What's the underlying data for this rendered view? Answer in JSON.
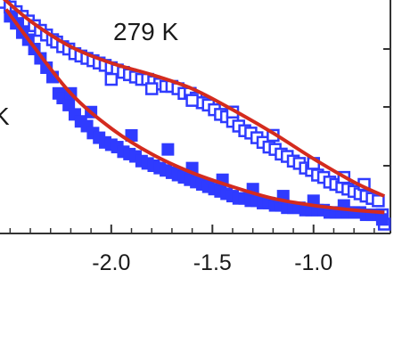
{
  "chart_data": {
    "type": "scatter",
    "title": "",
    "xlabel": "",
    "ylabel": "",
    "xlim": [
      -2.55,
      -0.62
    ],
    "ylim": [
      0.0,
      1.0
    ],
    "x_ticks": [
      -2.0,
      -1.5,
      -1.0
    ],
    "x_tick_labels": [
      "-2.0",
      "-1.5",
      "-1.0"
    ],
    "grid": false,
    "annotations": [
      "279 K",
      "K"
    ],
    "colors": {
      "points": "#2f3bff",
      "fit": "#d42b1e",
      "axis": "#333333"
    },
    "series": [
      {
        "marker": "open-square",
        "points": [
          [
            -2.53,
            0.99
          ],
          [
            -2.5,
            0.97
          ],
          [
            -2.47,
            0.95
          ],
          [
            -2.44,
            0.93
          ],
          [
            -2.41,
            0.91
          ],
          [
            -2.38,
            0.89
          ],
          [
            -2.35,
            0.87
          ],
          [
            -2.32,
            0.85
          ],
          [
            -2.29,
            0.83
          ],
          [
            -2.27,
            0.82
          ],
          [
            -2.24,
            0.8
          ],
          [
            -2.21,
            0.79
          ],
          [
            -2.18,
            0.77
          ],
          [
            -2.15,
            0.76
          ],
          [
            -2.12,
            0.75
          ],
          [
            -2.09,
            0.74
          ],
          [
            -2.06,
            0.73
          ],
          [
            -2.03,
            0.72
          ],
          [
            -2.0,
            0.71
          ],
          [
            -1.97,
            0.7
          ],
          [
            -1.94,
            0.69
          ],
          [
            -1.91,
            0.68
          ],
          [
            -1.88,
            0.67
          ],
          [
            -1.85,
            0.66
          ],
          [
            -1.82,
            0.66
          ],
          [
            -1.79,
            0.65
          ],
          [
            -1.76,
            0.64
          ],
          [
            -1.73,
            0.63
          ],
          [
            -1.7,
            0.63
          ],
          [
            -1.67,
            0.62
          ],
          [
            -1.64,
            0.6
          ],
          [
            -1.61,
            0.6
          ],
          [
            -1.58,
            0.58
          ],
          [
            -1.55,
            0.56
          ],
          [
            -1.52,
            0.55
          ],
          [
            -1.49,
            0.53
          ],
          [
            -1.46,
            0.51
          ],
          [
            -1.43,
            0.5
          ],
          [
            -1.4,
            0.48
          ],
          [
            -1.37,
            0.46
          ],
          [
            -1.34,
            0.44
          ],
          [
            -1.31,
            0.43
          ],
          [
            -1.28,
            0.41
          ],
          [
            -1.25,
            0.39
          ],
          [
            -1.22,
            0.37
          ],
          [
            -1.19,
            0.36
          ],
          [
            -1.16,
            0.34
          ],
          [
            -1.13,
            0.33
          ],
          [
            -1.1,
            0.31
          ],
          [
            -1.07,
            0.3
          ],
          [
            -1.04,
            0.28
          ],
          [
            -1.01,
            0.27
          ],
          [
            -0.98,
            0.25
          ],
          [
            -0.95,
            0.24
          ],
          [
            -0.92,
            0.22
          ],
          [
            -0.89,
            0.21
          ],
          [
            -0.86,
            0.2
          ],
          [
            -0.83,
            0.19
          ],
          [
            -0.8,
            0.18
          ],
          [
            -0.77,
            0.17
          ],
          [
            -0.74,
            0.16
          ],
          [
            -0.71,
            0.15
          ],
          [
            -0.68,
            0.14
          ],
          [
            -0.66,
            0.08
          ],
          [
            -0.65,
            0.04
          ],
          [
            -2.0,
            0.66
          ],
          [
            -1.8,
            0.62
          ],
          [
            -1.6,
            0.57
          ],
          [
            -1.4,
            0.52
          ],
          [
            -1.2,
            0.42
          ],
          [
            -1.0,
            0.3
          ],
          [
            -0.85,
            0.24
          ],
          [
            -0.75,
            0.21
          ]
        ]
      },
      {
        "marker": "filled-square",
        "points": [
          [
            -2.5,
            0.93
          ],
          [
            -2.47,
            0.9
          ],
          [
            -2.44,
            0.86
          ],
          [
            -2.41,
            0.83
          ],
          [
            -2.38,
            0.79
          ],
          [
            -2.35,
            0.75
          ],
          [
            -2.32,
            0.71
          ],
          [
            -2.29,
            0.67
          ],
          [
            -2.26,
            0.6
          ],
          [
            -2.24,
            0.58
          ],
          [
            -2.21,
            0.55
          ],
          [
            -2.18,
            0.51
          ],
          [
            -2.15,
            0.48
          ],
          [
            -2.12,
            0.46
          ],
          [
            -2.09,
            0.43
          ],
          [
            -2.06,
            0.41
          ],
          [
            -2.03,
            0.39
          ],
          [
            -2.0,
            0.38
          ],
          [
            -1.97,
            0.37
          ],
          [
            -1.94,
            0.35
          ],
          [
            -1.91,
            0.34
          ],
          [
            -1.88,
            0.33
          ],
          [
            -1.85,
            0.31
          ],
          [
            -1.82,
            0.3
          ],
          [
            -1.79,
            0.29
          ],
          [
            -1.76,
            0.28
          ],
          [
            -1.73,
            0.27
          ],
          [
            -1.7,
            0.26
          ],
          [
            -1.67,
            0.25
          ],
          [
            -1.64,
            0.24
          ],
          [
            -1.61,
            0.23
          ],
          [
            -1.58,
            0.22
          ],
          [
            -1.55,
            0.21
          ],
          [
            -1.52,
            0.2
          ],
          [
            -1.49,
            0.19
          ],
          [
            -1.46,
            0.18
          ],
          [
            -1.43,
            0.17
          ],
          [
            -1.4,
            0.16
          ],
          [
            -1.37,
            0.15
          ],
          [
            -1.34,
            0.15
          ],
          [
            -1.31,
            0.14
          ],
          [
            -1.28,
            0.14
          ],
          [
            -1.25,
            0.13
          ],
          [
            -1.22,
            0.13
          ],
          [
            -1.19,
            0.12
          ],
          [
            -1.16,
            0.12
          ],
          [
            -1.13,
            0.11
          ],
          [
            -1.1,
            0.11
          ],
          [
            -1.07,
            0.11
          ],
          [
            -1.04,
            0.1
          ],
          [
            -1.01,
            0.1
          ],
          [
            -0.98,
            0.1
          ],
          [
            -0.95,
            0.1
          ],
          [
            -0.92,
            0.09
          ],
          [
            -0.89,
            0.09
          ],
          [
            -0.86,
            0.09
          ],
          [
            -0.83,
            0.09
          ],
          [
            -0.8,
            0.09
          ],
          [
            -0.77,
            0.09
          ],
          [
            -0.74,
            0.08
          ],
          [
            -0.71,
            0.08
          ],
          [
            -0.68,
            0.08
          ],
          [
            -0.66,
            0.06
          ],
          [
            -2.2,
            0.6
          ],
          [
            -2.1,
            0.52
          ],
          [
            -1.9,
            0.42
          ],
          [
            -1.72,
            0.36
          ],
          [
            -1.6,
            0.28
          ],
          [
            -1.45,
            0.23
          ],
          [
            -1.3,
            0.19
          ],
          [
            -1.15,
            0.16
          ],
          [
            -1.0,
            0.14
          ],
          [
            -0.85,
            0.12
          ]
        ]
      }
    ],
    "fit_lines": [
      {
        "x": [
          -2.55,
          -2.4,
          -2.2,
          -2.0,
          -1.8,
          -1.6,
          -1.4,
          -1.2,
          -1.0,
          -0.8,
          -0.65
        ],
        "y": [
          1.02,
          0.91,
          0.8,
          0.73,
          0.68,
          0.62,
          0.53,
          0.43,
          0.32,
          0.22,
          0.16
        ]
      },
      {
        "x": [
          -2.52,
          -2.4,
          -2.2,
          -2.0,
          -1.8,
          -1.6,
          -1.4,
          -1.2,
          -1.0,
          -0.8,
          -0.65
        ],
        "y": [
          0.96,
          0.82,
          0.6,
          0.45,
          0.34,
          0.26,
          0.2,
          0.15,
          0.12,
          0.1,
          0.09
        ]
      }
    ]
  }
}
